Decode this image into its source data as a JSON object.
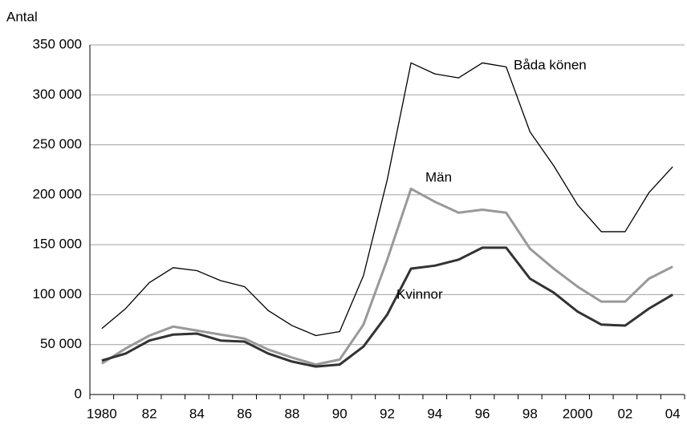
{
  "chart_data": {
    "type": "line",
    "y_label": "Antal",
    "categories": [
      "1980",
      null,
      "82",
      null,
      "84",
      null,
      "86",
      null,
      "88",
      null,
      "90",
      null,
      "92",
      null,
      "94",
      null,
      "96",
      null,
      "98",
      null,
      "2000",
      null,
      "02",
      null,
      "04"
    ],
    "series": [
      {
        "name": "Båda könen",
        "color": "#000000",
        "values": [
          66000,
          86000,
          112000,
          127000,
          124000,
          114000,
          108000,
          84000,
          69000,
          59000,
          63000,
          119000,
          215000,
          332000,
          321000,
          317000,
          332000,
          328000,
          263000,
          229000,
          190000,
          163000,
          163000,
          202000,
          228000
        ]
      },
      {
        "name": "Män",
        "color": "#999999",
        "values": [
          31000,
          46000,
          59000,
          68000,
          64000,
          60000,
          56000,
          45000,
          37000,
          30000,
          35000,
          70000,
          135000,
          206000,
          193000,
          182000,
          185000,
          182000,
          146000,
          126000,
          108000,
          93000,
          93000,
          116000,
          128000
        ]
      },
      {
        "name": "Kvinnor",
        "color": "#333333",
        "values": [
          34000,
          41000,
          54000,
          60000,
          61000,
          54000,
          53000,
          41000,
          33000,
          28000,
          30000,
          48000,
          80000,
          126000,
          129000,
          135000,
          147000,
          147000,
          116000,
          102000,
          83000,
          70000,
          69000,
          86000,
          100000
        ]
      }
    ],
    "ylim": [
      0,
      350000
    ],
    "yticks": [
      0,
      {
        "value": 50000,
        "label": "50 000"
      },
      {
        "value": 100000,
        "label": "100 000"
      },
      {
        "value": 150000,
        "label": "150 000"
      },
      {
        "value": 200000,
        "label": "200 000"
      },
      {
        "value": 250000,
        "label": "250 000"
      },
      {
        "value": 300000,
        "label": "300 000"
      },
      {
        "value": 350000,
        "label": "350 000"
      }
    ],
    "grid": true
  }
}
